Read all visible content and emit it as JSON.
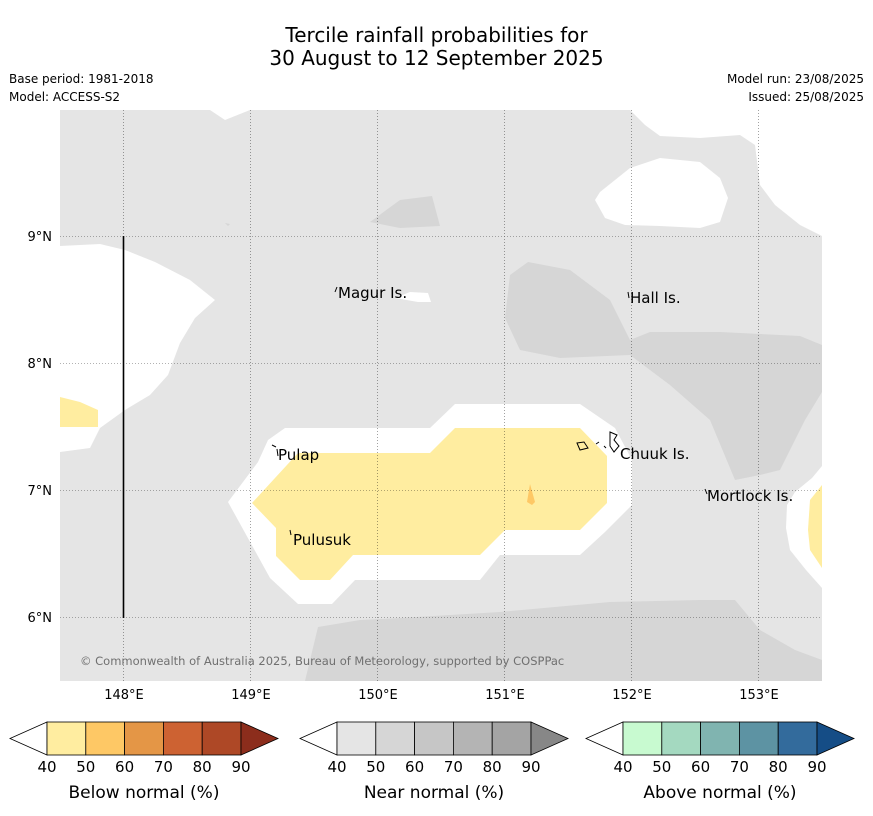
{
  "title": {
    "line1": "Tercile rainfall probabilities for",
    "line2": "30 August to 12 September 2025"
  },
  "meta": {
    "base_period": "Base period: 1981-2018",
    "model": "Model: ACCESS-S2",
    "model_run": "Model run: 23/08/2025",
    "issued": "Issued: 25/08/2025"
  },
  "map": {
    "latitude_labels": [
      "9°N",
      "8°N",
      "7°N",
      "6°N"
    ],
    "longitude_labels": [
      "148°E",
      "149°E",
      "150°E",
      "151°E",
      "152°E",
      "153°E"
    ],
    "places": [
      "Magur Is.",
      "Hall Is.",
      "Pulap",
      "Chuuk Is.",
      "Mortlock Is.",
      "Pulusuk"
    ],
    "copyright": "© Commonwealth of Australia 2025, Bureau of Meteorology, supported by COSPPac",
    "colors": {
      "no_dominant": "#ffffff",
      "near_40": "#e5e5e5",
      "near_50": "#d6d6d6",
      "below_50": "#ffeda0",
      "below_60": "#fec865"
    }
  },
  "legends": [
    {
      "label": "Below normal (%)",
      "ticks": [
        "40",
        "50",
        "60",
        "70",
        "80",
        "90"
      ],
      "colors": [
        "#ffeda0",
        "#fec865",
        "#e49646",
        "#cd6232",
        "#ae4826",
        "#8c2d1c"
      ]
    },
    {
      "label": "Near normal (%)",
      "ticks": [
        "40",
        "50",
        "60",
        "70",
        "80",
        "90"
      ],
      "colors": [
        "#e5e5e5",
        "#d6d6d6",
        "#c6c6c6",
        "#b4b4b4",
        "#a4a4a4",
        "#878787"
      ]
    },
    {
      "label": "Above normal (%)",
      "ticks": [
        "40",
        "50",
        "60",
        "70",
        "80",
        "90"
      ],
      "colors": [
        "#c8fad0",
        "#a4d9c0",
        "#80b4b0",
        "#5d93a3",
        "#336b9c",
        "#154d86"
      ]
    }
  ]
}
